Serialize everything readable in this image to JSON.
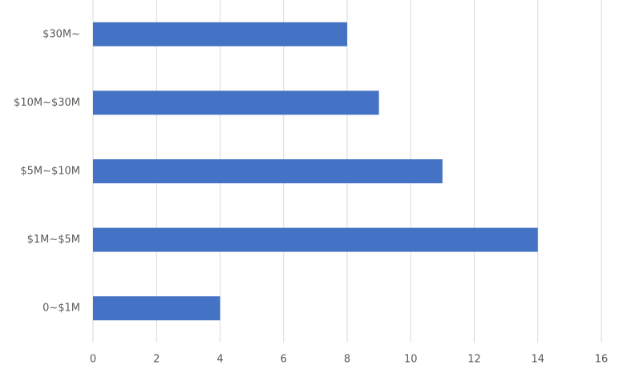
{
  "chart_data": {
    "type": "hbar",
    "categories": [
      "$30M~",
      "$10M~$30M",
      "$5M~$10M",
      "$1M~$5M",
      "0~$1M"
    ],
    "values": [
      8,
      9,
      11,
      14,
      4
    ],
    "color": "#4472c4",
    "xlim": [
      0,
      16
    ],
    "xticks": [
      0,
      2,
      4,
      6,
      8,
      10,
      12,
      14,
      16
    ],
    "grid": true
  }
}
